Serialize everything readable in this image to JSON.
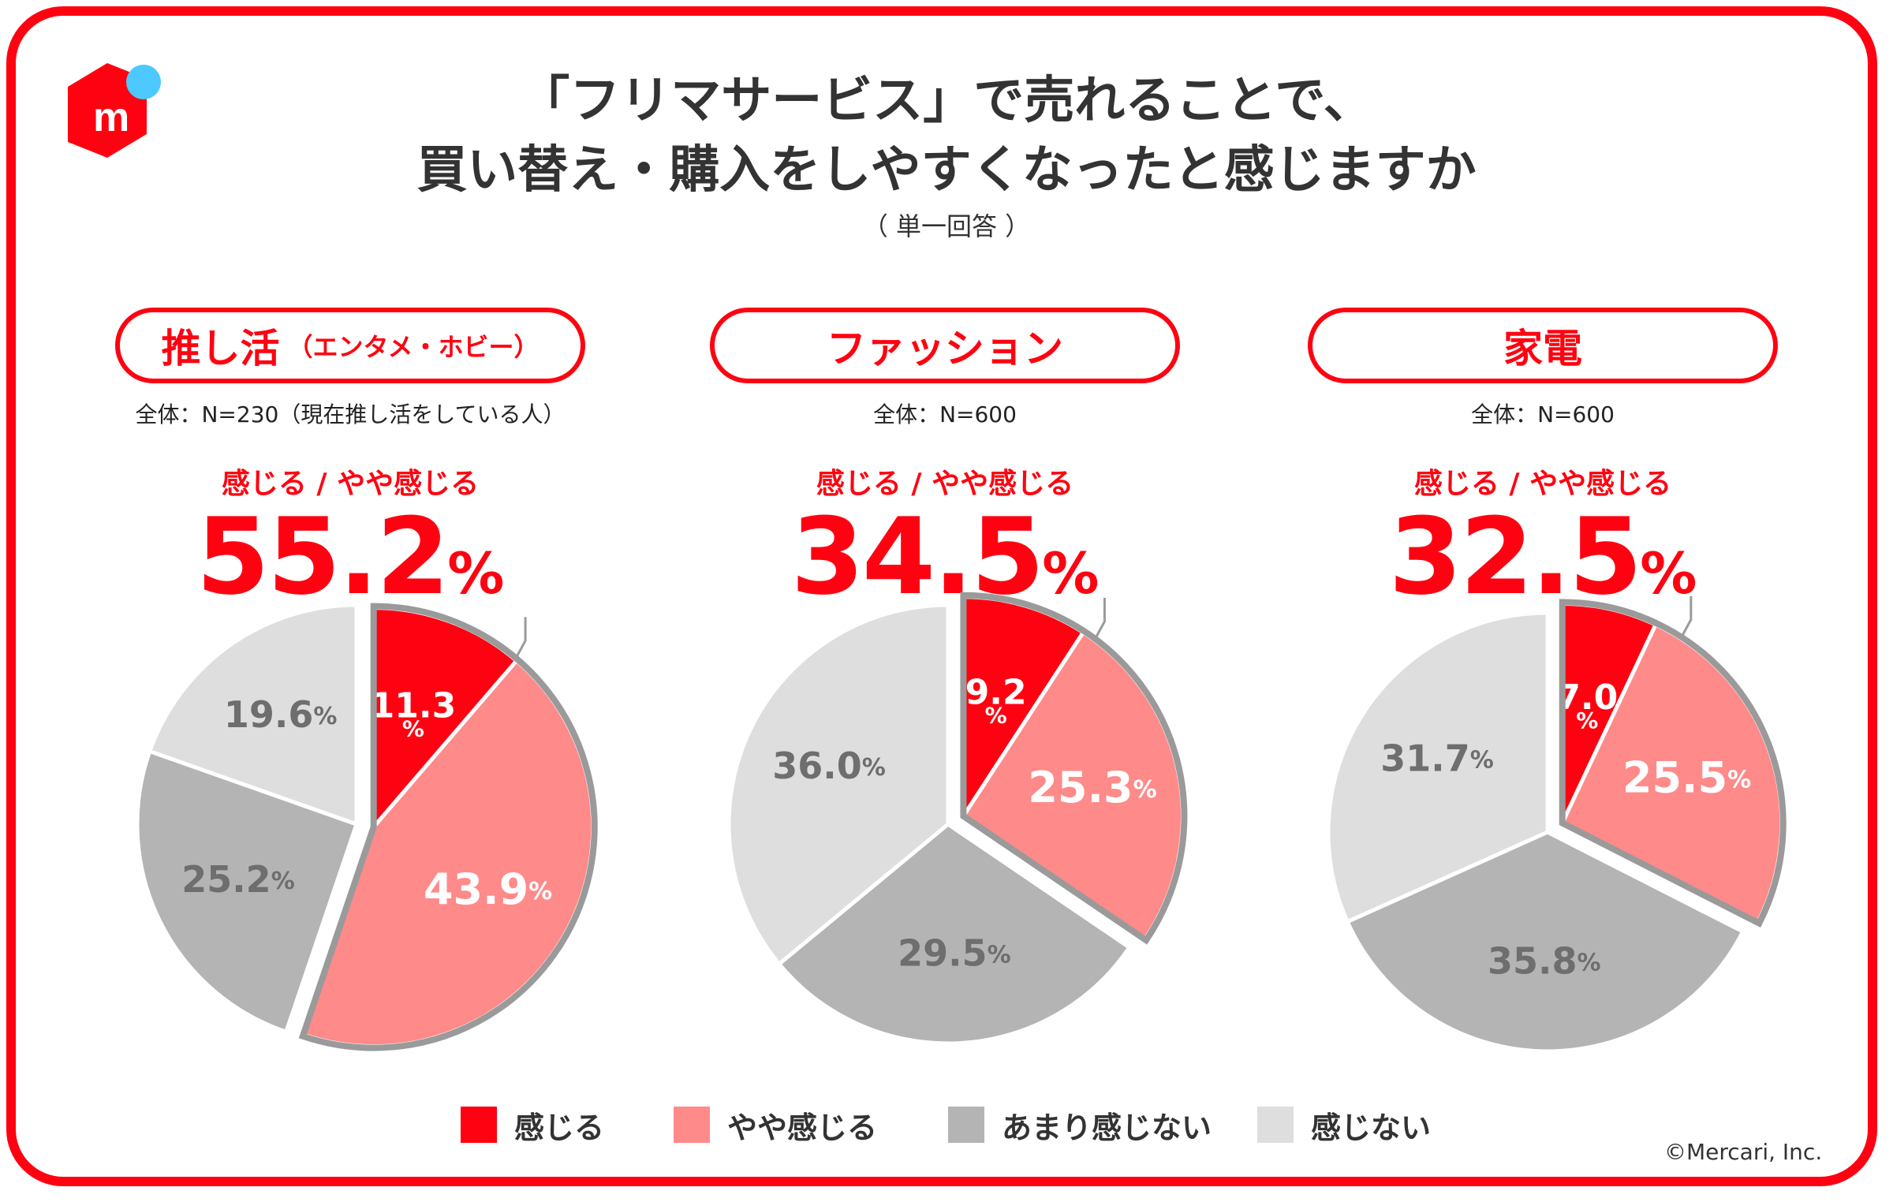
{
  "title": {
    "line1": "「フリマサービス」で売れることで、",
    "line2": "買い替え・購入をしやすくなったと感じますか",
    "note": "（ 単一回答 ）"
  },
  "highlight_label": "感じる /  やや感じる",
  "percent_sign": "%",
  "copyright": "©Mercari, Inc.",
  "legend": [
    {
      "label": "感じる",
      "color": "#ff0211"
    },
    {
      "label": "やや感じる",
      "color": "#ff8a8a"
    },
    {
      "label": "あまり感じない",
      "color": "#b4b4b4"
    },
    {
      "label": "感じない",
      "color": "#dedede"
    }
  ],
  "panels": [
    {
      "category": "推し活",
      "category_sub": "（エンタメ・ホビー）",
      "base": "全体：N=230（現在推し活をしている人）",
      "combined": "55.2"
    },
    {
      "category": "ファッション",
      "category_sub": "",
      "base": "全体：N=600",
      "combined": "34.5"
    },
    {
      "category": "家電",
      "category_sub": "",
      "base": "全体：N=600",
      "combined": "32.5"
    }
  ],
  "chart_data": [
    {
      "type": "pie",
      "title": "推し活（エンタメ・ホビー）",
      "categories": [
        "感じる",
        "やや感じる",
        "あまり感じない",
        "感じない"
      ],
      "values": [
        11.3,
        43.9,
        25.2,
        19.6
      ],
      "labels": [
        "11.3",
        "43.9",
        "25.2",
        "19.6"
      ],
      "highlight_total": 55.2,
      "unit": "%"
    },
    {
      "type": "pie",
      "title": "ファッション",
      "categories": [
        "感じる",
        "やや感じる",
        "あまり感じない",
        "感じない"
      ],
      "values": [
        9.2,
        25.3,
        29.5,
        36.0
      ],
      "labels": [
        "9.2",
        "25.3",
        "29.5",
        "36.0"
      ],
      "highlight_total": 34.5,
      "unit": "%"
    },
    {
      "type": "pie",
      "title": "家電",
      "categories": [
        "感じる",
        "やや感じる",
        "あまり感じない",
        "感じない"
      ],
      "values": [
        7.0,
        25.5,
        35.8,
        31.7
      ],
      "labels": [
        "7.0",
        "25.5",
        "35.8",
        "31.7"
      ],
      "highlight_total": 32.5,
      "unit": "%"
    }
  ]
}
